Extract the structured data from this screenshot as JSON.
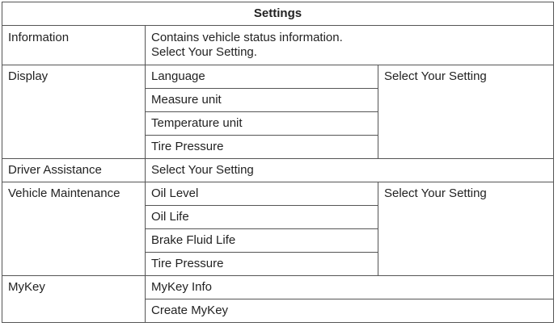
{
  "title": "Settings",
  "information": {
    "label": "Information",
    "line1": "Contains vehicle status information.",
    "line2": "Select Your Setting."
  },
  "display": {
    "label": "Display",
    "items": [
      "Language",
      "Measure unit",
      "Temperature unit",
      "Tire Pressure"
    ],
    "action": "Select Your Setting"
  },
  "driver_assistance": {
    "label": "Driver Assistance",
    "action": "Select Your Setting"
  },
  "vehicle_maintenance": {
    "label": "Vehicle Maintenance",
    "items": [
      "Oil Level",
      "Oil Life",
      "Brake Fluid Life",
      "Tire Pressure"
    ],
    "action": "Select Your Setting"
  },
  "mykey": {
    "label": "MyKey",
    "items": [
      "MyKey Info",
      "Create MyKey"
    ]
  }
}
